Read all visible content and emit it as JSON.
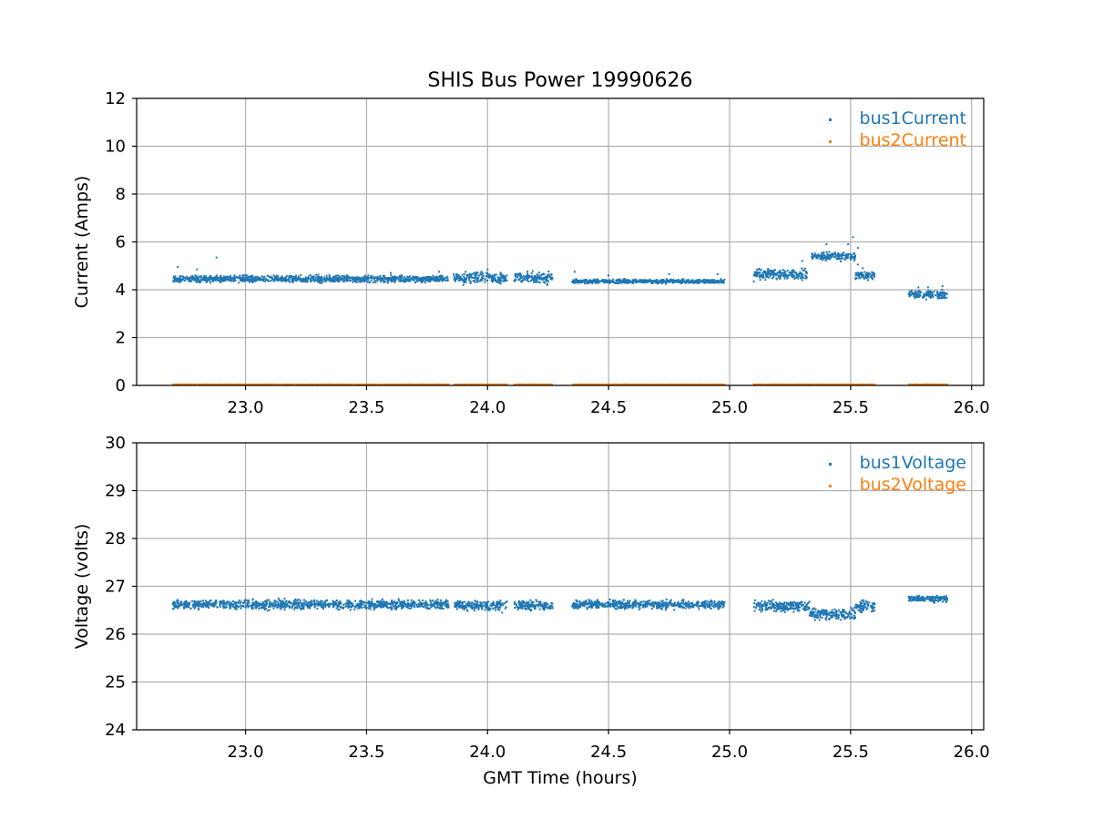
{
  "chart_data": {
    "title": "SHIS Bus Power 19990626",
    "xlabel": "GMT Time (hours)",
    "colors": {
      "series1": "#1f77b4",
      "series2": "#ff7f0e"
    },
    "panels": [
      {
        "type": "scatter",
        "ylabel": "Current (Amps)",
        "xlim": [
          22.55,
          26.05
        ],
        "ylim": [
          0,
          12
        ],
        "xticks": [
          "23.0",
          "23.5",
          "24.0",
          "24.5",
          "25.0",
          "25.5",
          "26.0"
        ],
        "yticks": [
          "0",
          "2",
          "4",
          "6",
          "8",
          "10",
          "12"
        ],
        "grid": true,
        "legend": "top-right",
        "series": [
          {
            "name": "bus1Current",
            "color": "#1f77b4",
            "segments": [
              {
                "x": [
                  22.7,
                  23.84
                ],
                "center": 4.45,
                "spread": 0.2,
                "outliers": [
                  [
                    22.72,
                    4.95
                  ],
                  [
                    22.8,
                    4.85
                  ],
                  [
                    22.88,
                    5.35
                  ],
                  [
                    23.6,
                    4.7
                  ],
                  [
                    23.8,
                    4.75
                  ]
                ]
              },
              {
                "x": [
                  23.86,
                  24.08
                ],
                "center": 4.5,
                "spread": 0.35,
                "outliers": [
                  [
                    23.9,
                    4.2
                  ],
                  [
                    24.0,
                    4.85
                  ]
                ]
              },
              {
                "x": [
                  24.11,
                  24.27
                ],
                "center": 4.5,
                "spread": 0.35,
                "outliers": []
              },
              {
                "x": [
                  24.35,
                  24.98
                ],
                "center": 4.35,
                "spread": 0.12,
                "outliers": [
                  [
                    24.36,
                    4.75
                  ],
                  [
                    24.5,
                    4.6
                  ],
                  [
                    24.75,
                    4.65
                  ],
                  [
                    24.95,
                    4.65
                  ]
                ]
              },
              {
                "x": [
                  25.1,
                  25.32
                ],
                "center": 4.65,
                "spread": 0.3,
                "outliers": [
                  [
                    25.1,
                    4.35
                  ],
                  [
                    25.3,
                    4.4
                  ]
                ]
              },
              {
                "x": [
                  25.34,
                  25.52
                ],
                "center": 5.4,
                "spread": 0.25,
                "outliers": [
                  [
                    25.4,
                    5.9
                  ],
                  [
                    25.49,
                    5.9
                  ],
                  [
                    25.51,
                    6.2
                  ],
                  [
                    25.53,
                    5.75
                  ],
                  [
                    25.3,
                    5.2
                  ]
                ]
              },
              {
                "x": [
                  25.52,
                  25.6
                ],
                "center": 4.6,
                "spread": 0.25,
                "outliers": [
                  [
                    25.53,
                    5.05
                  ],
                  [
                    25.55,
                    4.9
                  ]
                ]
              },
              {
                "x": [
                  25.74,
                  25.9
                ],
                "center": 3.8,
                "spread": 0.25,
                "outliers": [
                  [
                    25.78,
                    4.1
                  ],
                  [
                    25.82,
                    4.1
                  ],
                  [
                    25.88,
                    4.15
                  ]
                ]
              }
            ]
          },
          {
            "name": "bus2Current",
            "color": "#ff7f0e",
            "segments": [
              {
                "x": [
                  22.7,
                  23.84
                ],
                "center": 0.03,
                "spread": 0.02,
                "outliers": []
              },
              {
                "x": [
                  23.86,
                  24.08
                ],
                "center": 0.03,
                "spread": 0.02,
                "outliers": []
              },
              {
                "x": [
                  24.11,
                  24.27
                ],
                "center": 0.03,
                "spread": 0.02,
                "outliers": []
              },
              {
                "x": [
                  24.35,
                  24.98
                ],
                "center": 0.03,
                "spread": 0.02,
                "outliers": []
              },
              {
                "x": [
                  25.1,
                  25.6
                ],
                "center": 0.03,
                "spread": 0.02,
                "outliers": []
              },
              {
                "x": [
                  25.74,
                  25.9
                ],
                "center": 0.03,
                "spread": 0.02,
                "outliers": []
              }
            ]
          }
        ]
      },
      {
        "type": "scatter",
        "ylabel": "Voltage (volts)",
        "xlim": [
          22.55,
          26.05
        ],
        "ylim": [
          24,
          30
        ],
        "xticks": [
          "23.0",
          "23.5",
          "24.0",
          "24.5",
          "25.0",
          "25.5",
          "26.0"
        ],
        "yticks": [
          "24",
          "25",
          "26",
          "27",
          "28",
          "29",
          "30"
        ],
        "grid": true,
        "legend": "top-right",
        "series": [
          {
            "name": "bus1Voltage",
            "color": "#1f77b4",
            "segments": [
              {
                "x": [
                  22.7,
                  23.84
                ],
                "center": 26.62,
                "spread": 0.14,
                "outliers": []
              },
              {
                "x": [
                  23.86,
                  24.08
                ],
                "center": 26.6,
                "spread": 0.14,
                "outliers": [
                  [
                    24.06,
                    26.45
                  ]
                ]
              },
              {
                "x": [
                  24.11,
                  24.27
                ],
                "center": 26.6,
                "spread": 0.14,
                "outliers": []
              },
              {
                "x": [
                  24.35,
                  24.98
                ],
                "center": 26.62,
                "spread": 0.13,
                "outliers": []
              },
              {
                "x": [
                  25.1,
                  25.33
                ],
                "center": 26.58,
                "spread": 0.16,
                "outliers": []
              },
              {
                "x": [
                  25.33,
                  25.52
                ],
                "center": 26.42,
                "spread": 0.16,
                "outliers": [
                  [
                    25.4,
                    26.3
                  ],
                  [
                    25.46,
                    26.3
                  ]
                ]
              },
              {
                "x": [
                  25.52,
                  25.6
                ],
                "center": 26.58,
                "spread": 0.18,
                "outliers": []
              },
              {
                "x": [
                  25.74,
                  25.9
                ],
                "center": 26.74,
                "spread": 0.1,
                "outliers": []
              }
            ]
          },
          {
            "name": "bus2Voltage",
            "color": "#ff7f0e",
            "segments": []
          }
        ]
      }
    ]
  }
}
